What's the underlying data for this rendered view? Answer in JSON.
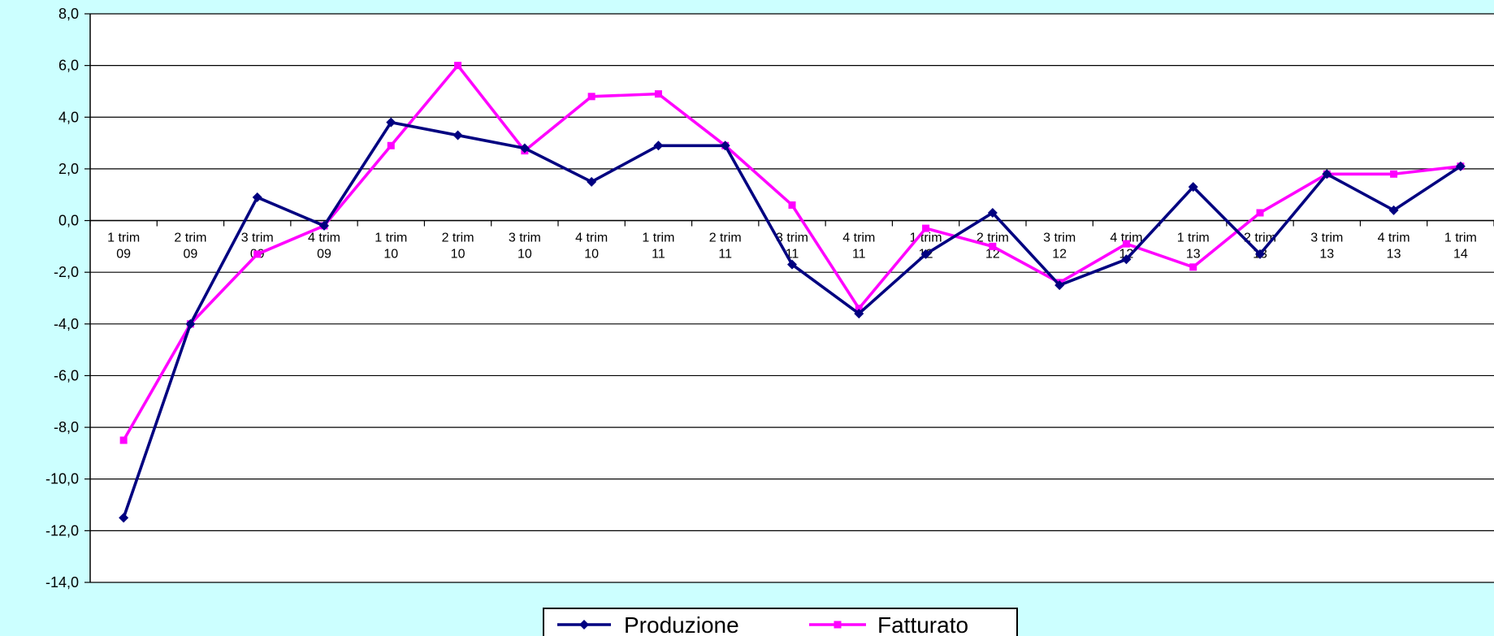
{
  "chart_data": {
    "type": "line",
    "title": "",
    "xlabel": "",
    "ylabel": "",
    "ylim": [
      -14,
      8
    ],
    "yticks": [
      8,
      6,
      4,
      2,
      0,
      -2,
      -4,
      -6,
      -8,
      -10,
      -12,
      -14
    ],
    "ytick_labels": [
      "8,0",
      "6,0",
      "4,0",
      "2,0",
      "0,0",
      "-2,0",
      "-4,0",
      "-6,0",
      "-8,0",
      "-10,0",
      "-12,0",
      "-14,0"
    ],
    "grid": true,
    "legend_position": "bottom-center",
    "categories": [
      [
        "1 trim",
        "09"
      ],
      [
        "2 trim",
        "09"
      ],
      [
        "3 trim",
        "09"
      ],
      [
        "4 trim",
        "09"
      ],
      [
        "1 trim",
        "10"
      ],
      [
        "2 trim",
        "10"
      ],
      [
        "3 trim",
        "10"
      ],
      [
        "4 trim",
        "10"
      ],
      [
        "1 trim",
        "11"
      ],
      [
        "2 trim",
        "11"
      ],
      [
        "3 trim",
        "11"
      ],
      [
        "4 trim",
        "11"
      ],
      [
        "1 trim",
        "12"
      ],
      [
        "2 trim",
        "12"
      ],
      [
        "3 trim",
        "12"
      ],
      [
        "4 trim",
        "12"
      ],
      [
        "1 trim",
        "13"
      ],
      [
        "2 trim",
        "13"
      ],
      [
        "3 trim",
        "13"
      ],
      [
        "4 trim",
        "13"
      ],
      [
        "1 trim",
        "14"
      ]
    ],
    "series": [
      {
        "name": "Produzione",
        "color": "#000080",
        "marker": "diamond",
        "values": [
          -11.5,
          -4.0,
          0.9,
          -0.2,
          3.8,
          3.3,
          2.8,
          1.5,
          2.9,
          2.9,
          -1.7,
          -3.6,
          -1.3,
          0.3,
          -2.5,
          -1.5,
          1.3,
          -1.3,
          1.8,
          0.4,
          2.1
        ]
      },
      {
        "name": "Fatturato",
        "color": "#ff00ff",
        "marker": "square",
        "values": [
          -8.5,
          -4.0,
          -1.3,
          -0.2,
          2.9,
          6.0,
          2.7,
          4.8,
          4.9,
          2.9,
          0.6,
          -3.4,
          -0.3,
          -1.0,
          -2.4,
          -0.9,
          -1.8,
          0.3,
          1.8,
          1.8,
          2.1
        ]
      }
    ]
  }
}
